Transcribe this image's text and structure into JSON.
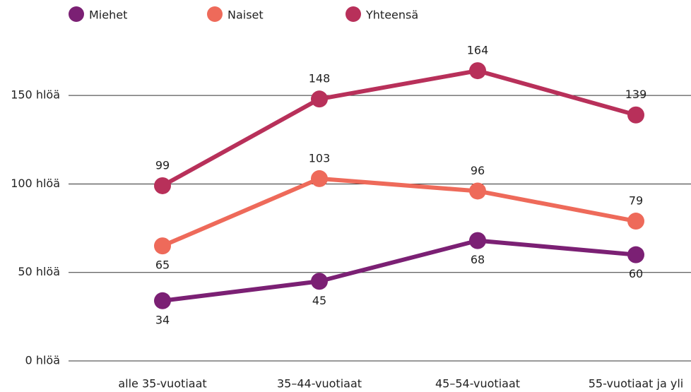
{
  "chart_data": {
    "type": "line",
    "categories": [
      "alle 35-vuotiaat",
      "35–44-vuotiaat",
      "45–54-vuotiaat",
      "55-vuotiaat ja yli"
    ],
    "series": [
      {
        "name": "Miehet",
        "color": "#7b2074",
        "values": [
          34,
          45,
          68,
          60
        ]
      },
      {
        "name": "Naiset",
        "color": "#ee6a5a",
        "values": [
          65,
          103,
          96,
          79
        ]
      },
      {
        "name": "Yhteensä",
        "color": "#b8305a",
        "values": [
          99,
          148,
          164,
          139
        ]
      }
    ],
    "ylim": [
      0,
      180
    ],
    "yticks": [
      {
        "value": 0,
        "label": "0 hlöä"
      },
      {
        "value": 50,
        "label": "50 hlöä"
      },
      {
        "value": 100,
        "label": "100 hlöä"
      },
      {
        "value": 150,
        "label": "150 hlöä"
      }
    ],
    "grid": true
  }
}
